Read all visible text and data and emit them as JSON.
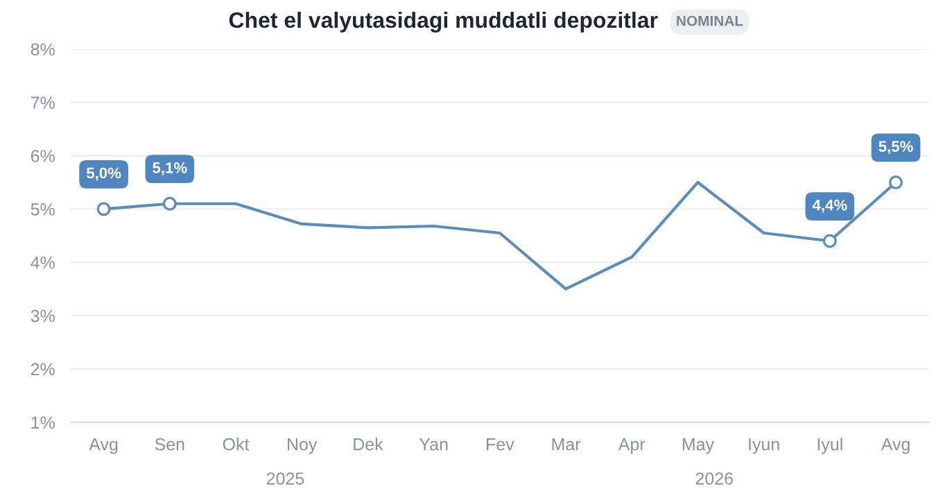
{
  "chart_data": {
    "type": "line",
    "title": "Chet el valyutasidagi muddatli depozitlar",
    "subtitle": "NOMINAL",
    "categories": [
      "Avg",
      "Sen",
      "Okt",
      "Noy",
      "Dek",
      "Yan",
      "Fev",
      "Mar",
      "Apr",
      "May",
      "Iyun",
      "Iyul",
      "Avg"
    ],
    "series": [
      {
        "color": "#5b8db8",
        "values": [
          5.0,
          5.1,
          5.1,
          4.72,
          4.65,
          4.68,
          4.55,
          3.5,
          4.1,
          5.5,
          4.55,
          4.4,
          5.5
        ],
        "value_labels": [
          "5,0%",
          "5,1%",
          null,
          null,
          null,
          null,
          null,
          null,
          null,
          null,
          null,
          "4,4%",
          "5,5%"
        ]
      }
    ],
    "ylim": [
      1,
      8
    ],
    "yticks": [
      {
        "value": 1,
        "label": "1%"
      },
      {
        "value": 2,
        "label": "2%"
      },
      {
        "value": 3,
        "label": "3%"
      },
      {
        "value": 4,
        "label": "4%"
      },
      {
        "value": 5,
        "label": "5%"
      },
      {
        "value": 6,
        "label": "6%"
      },
      {
        "value": 7,
        "label": "7%"
      },
      {
        "value": 8,
        "label": "8%"
      }
    ],
    "annotations": [
      "2025",
      "2026"
    ],
    "grid": "y",
    "line_style": "solid"
  }
}
